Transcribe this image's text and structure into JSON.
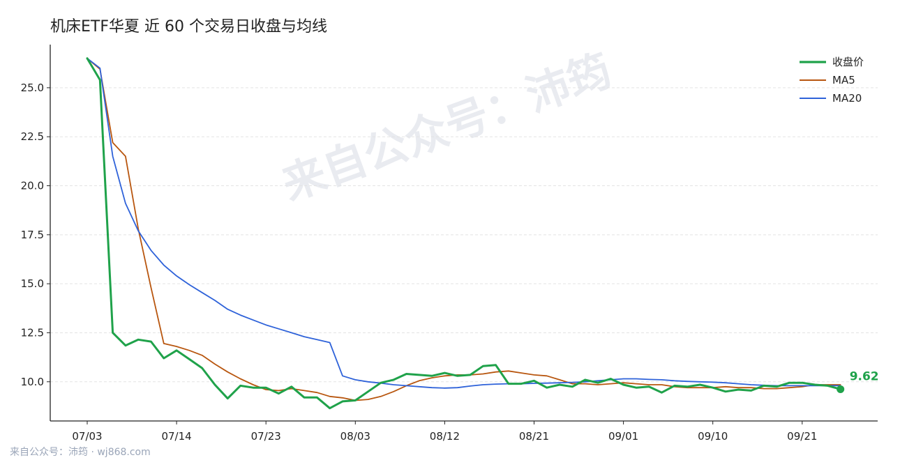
{
  "header": {
    "title": "机床ETF华夏 近 60 个交易日收盘与均线"
  },
  "watermark": "来自公众号：沛筠",
  "footer": "来自公众号：沛筠 · wj868.com",
  "colors": {
    "close": "#1fa24a",
    "ma5": "#b8560f",
    "ma20": "#2e62d9",
    "grid": "#e3e3e3",
    "axis": "#222222"
  },
  "chart_data": {
    "type": "line",
    "title": "机床ETF华夏 近 60 个交易日收盘与均线",
    "xlabel": "",
    "ylabel": "",
    "ylim": [
      8.0,
      27.2
    ],
    "yticks": [
      "10.0",
      "12.5",
      "15.0",
      "17.5",
      "20.0",
      "22.5",
      "25.0"
    ],
    "ytick_values": [
      10.0,
      12.5,
      15.0,
      17.5,
      20.0,
      22.5,
      25.0
    ],
    "xtick_labels": [
      "07/03",
      "07/14",
      "07/23",
      "08/03",
      "08/12",
      "08/21",
      "09/01",
      "09/10",
      "09/21"
    ],
    "xtick_index": [
      0,
      7,
      14,
      21,
      28,
      35,
      42,
      49,
      56
    ],
    "grid": "horizontal dashed",
    "legend_position": "top-right",
    "last_label": "9.62",
    "series": [
      {
        "name": "收盘价",
        "values": [
          26.5,
          25.4,
          12.5,
          11.85,
          12.15,
          12.05,
          11.2,
          11.6,
          11.15,
          10.7,
          9.85,
          9.15,
          9.8,
          9.7,
          9.7,
          9.4,
          9.75,
          9.2,
          9.2,
          8.65,
          9.0,
          9.05,
          9.5,
          9.95,
          10.1,
          10.4,
          10.35,
          10.3,
          10.45,
          10.3,
          10.35,
          10.8,
          10.85,
          9.9,
          9.9,
          10.05,
          9.7,
          9.85,
          9.75,
          10.1,
          9.95,
          10.15,
          9.85,
          9.7,
          9.75,
          9.45,
          9.8,
          9.75,
          9.85,
          9.7,
          9.5,
          9.6,
          9.55,
          9.8,
          9.75,
          9.95,
          9.95,
          9.85,
          9.8,
          9.62
        ]
      },
      {
        "name": "MA5",
        "values": [
          26.5,
          25.95,
          22.2,
          21.5,
          17.8,
          14.8,
          11.95,
          11.8,
          11.6,
          11.35,
          10.9,
          10.5,
          10.15,
          9.85,
          9.6,
          9.55,
          9.65,
          9.55,
          9.45,
          9.25,
          9.18,
          9.05,
          9.1,
          9.25,
          9.5,
          9.8,
          10.05,
          10.2,
          10.3,
          10.35,
          10.35,
          10.4,
          10.5,
          10.55,
          10.45,
          10.35,
          10.3,
          10.1,
          9.9,
          9.9,
          9.85,
          9.9,
          9.95,
          9.9,
          9.85,
          9.85,
          9.75,
          9.7,
          9.7,
          9.7,
          9.75,
          9.7,
          9.7,
          9.65,
          9.65,
          9.7,
          9.75,
          9.85,
          9.85,
          9.85
        ]
      },
      {
        "name": "MA20",
        "values": [
          26.5,
          26.0,
          21.5,
          19.1,
          17.7,
          16.7,
          15.95,
          15.4,
          14.95,
          14.55,
          14.15,
          13.7,
          13.4,
          13.15,
          12.9,
          12.7,
          12.5,
          12.3,
          12.15,
          12.0,
          10.3,
          10.1,
          10.0,
          9.93,
          9.85,
          9.8,
          9.75,
          9.7,
          9.68,
          9.7,
          9.78,
          9.85,
          9.88,
          9.9,
          9.9,
          9.92,
          9.93,
          9.95,
          9.97,
          10.0,
          10.05,
          10.1,
          10.15,
          10.15,
          10.12,
          10.1,
          10.05,
          10.02,
          10.0,
          9.98,
          9.95,
          9.9,
          9.85,
          9.82,
          9.8,
          9.8,
          9.8,
          9.8,
          9.8,
          9.8
        ]
      }
    ]
  }
}
